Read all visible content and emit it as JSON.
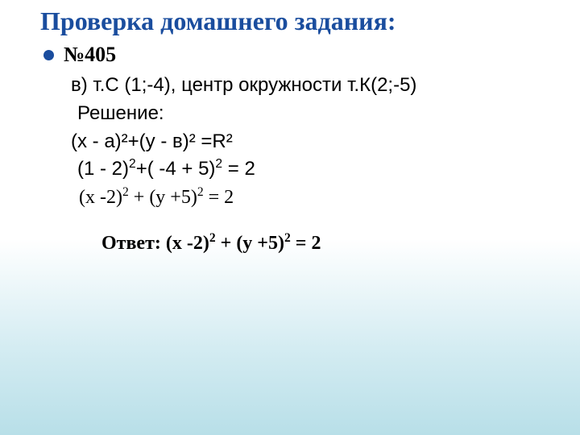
{
  "title": "Проверка домашнего задания:",
  "problemNumber": "№405",
  "lines": {
    "v": "в) т.С (1;-4), центр окружности т.К(2;-5)",
    "solution": "Решение:",
    "formula": "(х - а)²+(у - в)² =R²",
    "calc1_part1": "(1 - 2)",
    "calc1_part2": "+( -4 + 5)",
    "calc1_part3": " = 2",
    "calc2_part1": "(х -2)",
    "calc2_part2": " + (у +5)",
    "calc2_part3": " = 2"
  },
  "answer": {
    "label": "Ответ: ",
    "part1": "(х -2)",
    "part2": " + (у +5)",
    "part3": " = 2"
  },
  "colors": {
    "titleColor": "#1a4d9e",
    "bulletColor": "#1a4d9e",
    "textColor": "#000000",
    "bgGradientTop": "#ffffff",
    "bgGradientBottom": "#b8dfe8"
  },
  "typography": {
    "titleFontSize": 32,
    "bodyFontSize": 24,
    "problemNumberFontSize": 26
  }
}
